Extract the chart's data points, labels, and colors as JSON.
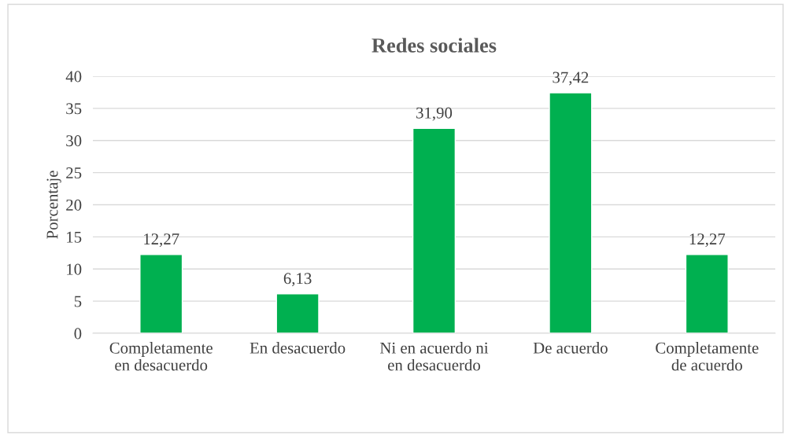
{
  "chart_data": {
    "type": "bar",
    "title": "Redes sociales",
    "ylabel": "Porcentaje",
    "categories": [
      "Completamente\nen desacuerdo",
      "En desacuerdo",
      "Ni en acuerdo ni\nen desacuerdo",
      "De acuerdo",
      "Completamente\nde acuerdo"
    ],
    "values": [
      12.27,
      6.13,
      31.9,
      37.42,
      12.27
    ],
    "value_labels": [
      "12,27",
      "6,13",
      "31,90",
      "37,42",
      "12,27"
    ],
    "color": "#00b050",
    "ylim": [
      0,
      40
    ],
    "yticks": [
      0,
      5,
      10,
      15,
      20,
      25,
      30,
      35,
      40
    ],
    "grid": "y",
    "legend": false
  }
}
